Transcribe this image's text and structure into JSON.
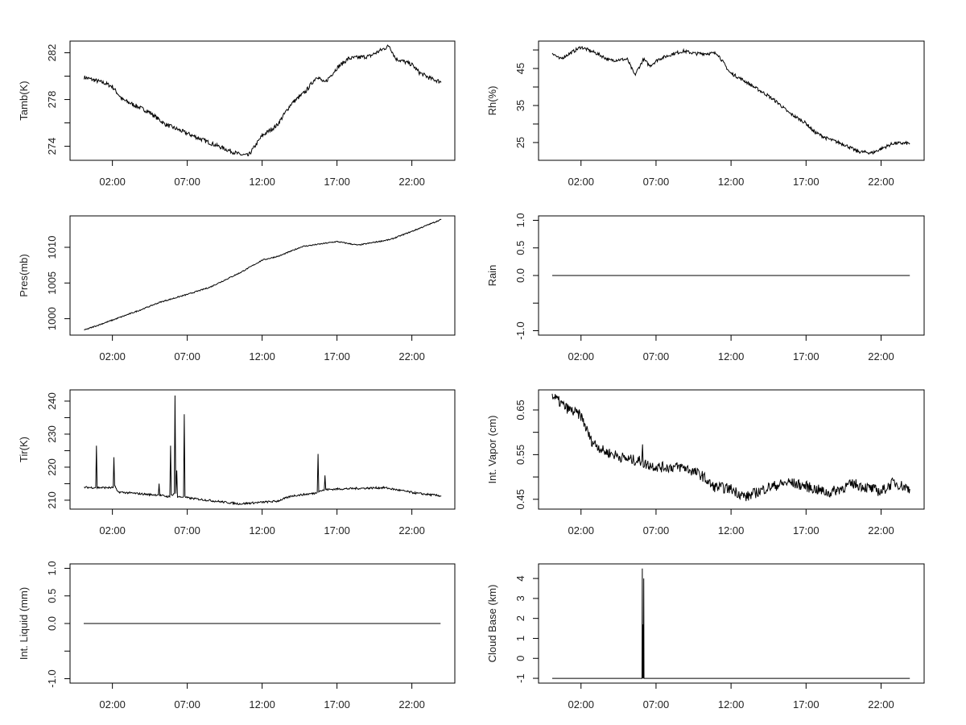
{
  "chart_data": [
    {
      "type": "line",
      "ylabel": "Tamb(K)",
      "ylim": [
        272.8,
        283.0
      ],
      "y_ticks": [
        274,
        276,
        278,
        280,
        282
      ],
      "y_tick_labels": [
        "274",
        "",
        "278",
        "",
        "282"
      ],
      "x_ticks": [
        "02:00",
        "07:00",
        "12:00",
        "17:00",
        "22:00"
      ],
      "x": [
        "00:07",
        "01:30",
        "02:00",
        "02:40",
        "04:30",
        "05:30",
        "07:00",
        "08:30",
        "09:40",
        "10:30",
        "11:05",
        "12:00",
        "13:00",
        "13:55",
        "14:55",
        "15:40",
        "16:10",
        "17:00",
        "17:45",
        "19:10",
        "20:30",
        "20:55",
        "22:00",
        "22:30",
        "23:15",
        "23:58"
      ],
      "y": [
        279.9,
        279.4,
        279.1,
        278.0,
        276.9,
        275.9,
        275.1,
        274.3,
        273.7,
        273.3,
        273.2,
        274.9,
        275.8,
        277.6,
        278.7,
        280.0,
        279.4,
        280.7,
        281.5,
        281.7,
        282.6,
        281.5,
        281.0,
        280.3,
        279.8,
        279.5
      ]
    },
    {
      "type": "line",
      "ylabel": "Rh(%)",
      "ylim": [
        20.2,
        52.4
      ],
      "y_ticks": [
        25,
        30,
        35,
        40,
        45,
        50
      ],
      "y_tick_labels": [
        "25",
        "",
        "35",
        "",
        "45",
        ""
      ],
      "x_ticks": [
        "02:00",
        "07:00",
        "12:00",
        "17:00",
        "22:00"
      ],
      "x": [
        "00:05",
        "00:35",
        "02:00",
        "03:05",
        "03:55",
        "05:05",
        "05:35",
        "06:10",
        "06:35",
        "07:10",
        "08:10",
        "08:50",
        "09:40",
        "11:05",
        "11:55",
        "12:50",
        "13:25",
        "14:25",
        "15:10",
        "15:50",
        "17:00",
        "17:30",
        "18:20",
        "19:35",
        "20:25",
        "21:25",
        "22:00",
        "22:50",
        "23:55"
      ],
      "y": [
        49.3,
        47.5,
        50.8,
        49.0,
        47.2,
        47.5,
        43.2,
        47.5,
        45.7,
        47.5,
        49.0,
        49.7,
        49.0,
        49.1,
        43.9,
        41.8,
        40.3,
        37.8,
        35.6,
        33.1,
        30.2,
        28.0,
        26.2,
        24.4,
        22.6,
        22.2,
        23.3,
        24.8,
        24.8
      ]
    },
    {
      "type": "line",
      "ylabel": "Pres(mb)",
      "ylim": [
        997.7,
        1014.4
      ],
      "y_ticks": [
        1000,
        1005,
        1010
      ],
      "y_tick_labels": [
        "1000",
        "1005",
        "1010"
      ],
      "x_ticks": [
        "02:00",
        "07:00",
        "12:00",
        "17:00",
        "22:00"
      ],
      "x": [
        "00:07",
        "02:00",
        "03:50",
        "05:10",
        "07:00",
        "08:30",
        "10:35",
        "12:00",
        "13:10",
        "14:40",
        "17:00",
        "18:25",
        "20:35",
        "22:05",
        "23:58"
      ],
      "y": [
        998.4,
        999.8,
        1001.2,
        1002.3,
        1003.4,
        1004.4,
        1006.5,
        1008.2,
        1008.8,
        1010.1,
        1010.8,
        1010.3,
        1011.1,
        1012.3,
        1013.9
      ]
    },
    {
      "type": "line",
      "ylabel": "Rain",
      "ylim": [
        -1.08,
        1.08
      ],
      "y_ticks": [
        -1.0,
        -0.5,
        0.0,
        0.5,
        1.0
      ],
      "y_tick_labels": [
        "-1.0",
        "",
        "0.0",
        "0.5",
        "1.0"
      ],
      "x_ticks": [
        "02:00",
        "07:00",
        "12:00",
        "17:00",
        "22:00"
      ],
      "x": [
        "00:05",
        "23:55"
      ],
      "y": [
        0,
        0
      ]
    },
    {
      "type": "line",
      "ylabel": "Tir(K)",
      "ylim": [
        207.3,
        243.4
      ],
      "y_ticks": [
        210,
        215,
        220,
        225,
        230,
        235,
        240
      ],
      "y_tick_labels": [
        "210",
        "",
        "220",
        "",
        "230",
        "",
        "240"
      ],
      "x_ticks": [
        "02:00",
        "07:00",
        "12:00",
        "17:00",
        "22:00"
      ],
      "x": [
        "00:07",
        "00:53",
        "00:56",
        "00:59",
        "02:03",
        "02:06",
        "02:09",
        "02:20",
        "04:30",
        "05:04",
        "05:07",
        "05:10",
        "05:50",
        "05:53",
        "05:56",
        "06:08",
        "06:11",
        "06:14",
        "06:18",
        "06:21",
        "06:45",
        "06:48",
        "06:51",
        "07:00",
        "08:55",
        "10:30",
        "13:00",
        "14:00",
        "15:30",
        "15:41",
        "15:44",
        "15:47",
        "16:09",
        "16:12",
        "16:15",
        "17:05",
        "20:10",
        "22:20",
        "23:58"
      ],
      "y": [
        213.9,
        213.8,
        226.5,
        213.8,
        213.8,
        223.0,
        214.5,
        212.5,
        211.7,
        211.6,
        215.0,
        211.5,
        211.0,
        226.5,
        211.5,
        212.0,
        241.7,
        212.0,
        219.0,
        211.0,
        211.0,
        236.0,
        211.0,
        210.7,
        209.7,
        208.9,
        209.7,
        211.3,
        212.1,
        212.5,
        224.0,
        212.8,
        213.0,
        217.5,
        213.2,
        213.4,
        213.8,
        212.1,
        211.3
      ]
    },
    {
      "type": "line",
      "ylabel": "Int. Vapor (cm)",
      "ylim": [
        0.428,
        0.695
      ],
      "y_ticks": [
        0.45,
        0.5,
        0.55,
        0.6,
        0.65
      ],
      "y_tick_labels": [
        "0.45",
        "",
        "0.55",
        "",
        "0.65"
      ],
      "x_ticks": [
        "02:00",
        "07:00",
        "12:00",
        "17:00",
        "22:00"
      ],
      "x": [
        "00:05",
        "01:00",
        "02:00",
        "02:40",
        "03:30",
        "05:05",
        "06:03",
        "06:06",
        "06:09",
        "06:25",
        "07:10",
        "08:50",
        "10:05",
        "10:45",
        "12:00",
        "13:00",
        "14:25",
        "15:50",
        "17:00",
        "18:30",
        "20:10",
        "22:00",
        "22:50",
        "23:55"
      ],
      "y": [
        0.682,
        0.655,
        0.637,
        0.582,
        0.558,
        0.54,
        0.535,
        0.573,
        0.53,
        0.528,
        0.522,
        0.522,
        0.503,
        0.479,
        0.473,
        0.455,
        0.476,
        0.488,
        0.479,
        0.464,
        0.485,
        0.467,
        0.488,
        0.473
      ]
    },
    {
      "type": "line",
      "ylabel": "Int. Liquid (mm)",
      "ylim": [
        -1.08,
        1.08
      ],
      "y_ticks": [
        -1.0,
        -0.5,
        0.0,
        0.5,
        1.0
      ],
      "y_tick_labels": [
        "-1.0",
        "",
        "0.0",
        "0.5",
        "1.0"
      ],
      "x_ticks": [
        "02:00",
        "07:00",
        "12:00",
        "17:00",
        "22:00"
      ],
      "x": [
        "00:05",
        "23:55"
      ],
      "y": [
        0,
        0
      ]
    },
    {
      "type": "line",
      "ylabel": "Cloud Base (km)",
      "ylim": [
        -1.24,
        4.73
      ],
      "y_ticks": [
        -1,
        0,
        1,
        2,
        3,
        4
      ],
      "y_tick_labels": [
        "-1",
        "0",
        "1",
        "2",
        "3",
        "4"
      ],
      "x_ticks": [
        "02:00",
        "07:00",
        "12:00",
        "17:00",
        "22:00"
      ],
      "x": [
        "00:05",
        "06:04",
        "06:05",
        "06:06",
        "06:07",
        "06:08",
        "06:09",
        "06:10",
        "06:11",
        "06:12",
        "06:13",
        "23:55"
      ],
      "y": [
        -1,
        -1,
        4.5,
        -1,
        1.7,
        -1,
        1.7,
        -1,
        4.0,
        -1,
        -1,
        -1
      ]
    }
  ]
}
